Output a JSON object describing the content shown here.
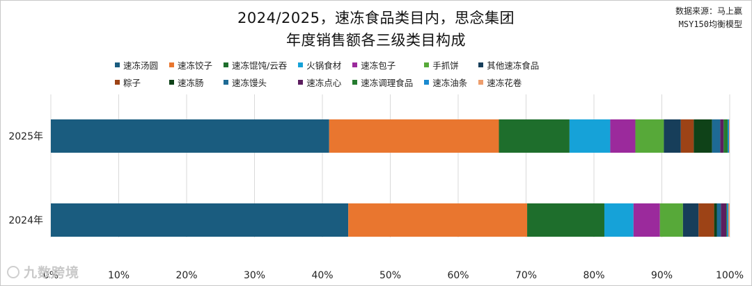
{
  "header": {
    "title_line1": "2024/2025，速冻食品类目内，思念集团",
    "title_line2": "年度销售额各三级类目构成",
    "source_line1": "数据来源：马上赢",
    "source_line2": "MSY150均衡模型"
  },
  "watermark": {
    "text": "九数跨境",
    "icon": "logo-icon"
  },
  "chart_data": {
    "type": "bar",
    "orientation": "horizontal",
    "stacked": "percent",
    "title": "2024/2025，速冻食品类目内，思念集团 年度销售额各三级类目构成",
    "categories": [
      "2025年",
      "2024年"
    ],
    "xlim": [
      0,
      100
    ],
    "x_ticks": [
      "0%",
      "10%",
      "20%",
      "30%",
      "40%",
      "50%",
      "60%",
      "70%",
      "80%",
      "90%",
      "100%"
    ],
    "grid": "vertical",
    "legend_position": "top",
    "series": [
      {
        "name": "速冻汤圆",
        "color": "#1a5c7f",
        "values": [
          41.0,
          43.9
        ]
      },
      {
        "name": "速冻饺子",
        "color": "#e9762f",
        "values": [
          25.0,
          26.4
        ]
      },
      {
        "name": "速冻馄饨/云吞",
        "color": "#1e6e2c",
        "values": [
          10.4,
          11.4
        ]
      },
      {
        "name": "火锅食材",
        "color": "#16a2d8",
        "values": [
          6.0,
          4.3
        ]
      },
      {
        "name": "速冻包子",
        "color": "#9b2a9c",
        "values": [
          3.7,
          3.9
        ]
      },
      {
        "name": "手抓饼",
        "color": "#57a939",
        "values": [
          4.2,
          3.4
        ]
      },
      {
        "name": "其他速冻食品",
        "color": "#173e5a",
        "values": [
          2.5,
          2.3
        ]
      },
      {
        "name": "粽子",
        "color": "#9d4316",
        "values": [
          1.9,
          2.3
        ]
      },
      {
        "name": "速冻肠",
        "color": "#0f4218",
        "values": [
          2.7,
          0.4
        ]
      },
      {
        "name": "速冻馒头",
        "color": "#1e6a94",
        "values": [
          1.2,
          0.6
        ]
      },
      {
        "name": "速冻点心",
        "color": "#5c1e5f",
        "values": [
          0.5,
          0.8
        ]
      },
      {
        "name": "速冻调理食品",
        "color": "#257b2f",
        "values": [
          0.6,
          0.1
        ]
      },
      {
        "name": "速冻油条",
        "color": "#1a8ad0",
        "values": [
          0.2,
          0.2
        ]
      },
      {
        "name": "速冻花卷",
        "color": "#ee9e6d",
        "values": [
          0.1,
          0.2
        ]
      }
    ]
  }
}
